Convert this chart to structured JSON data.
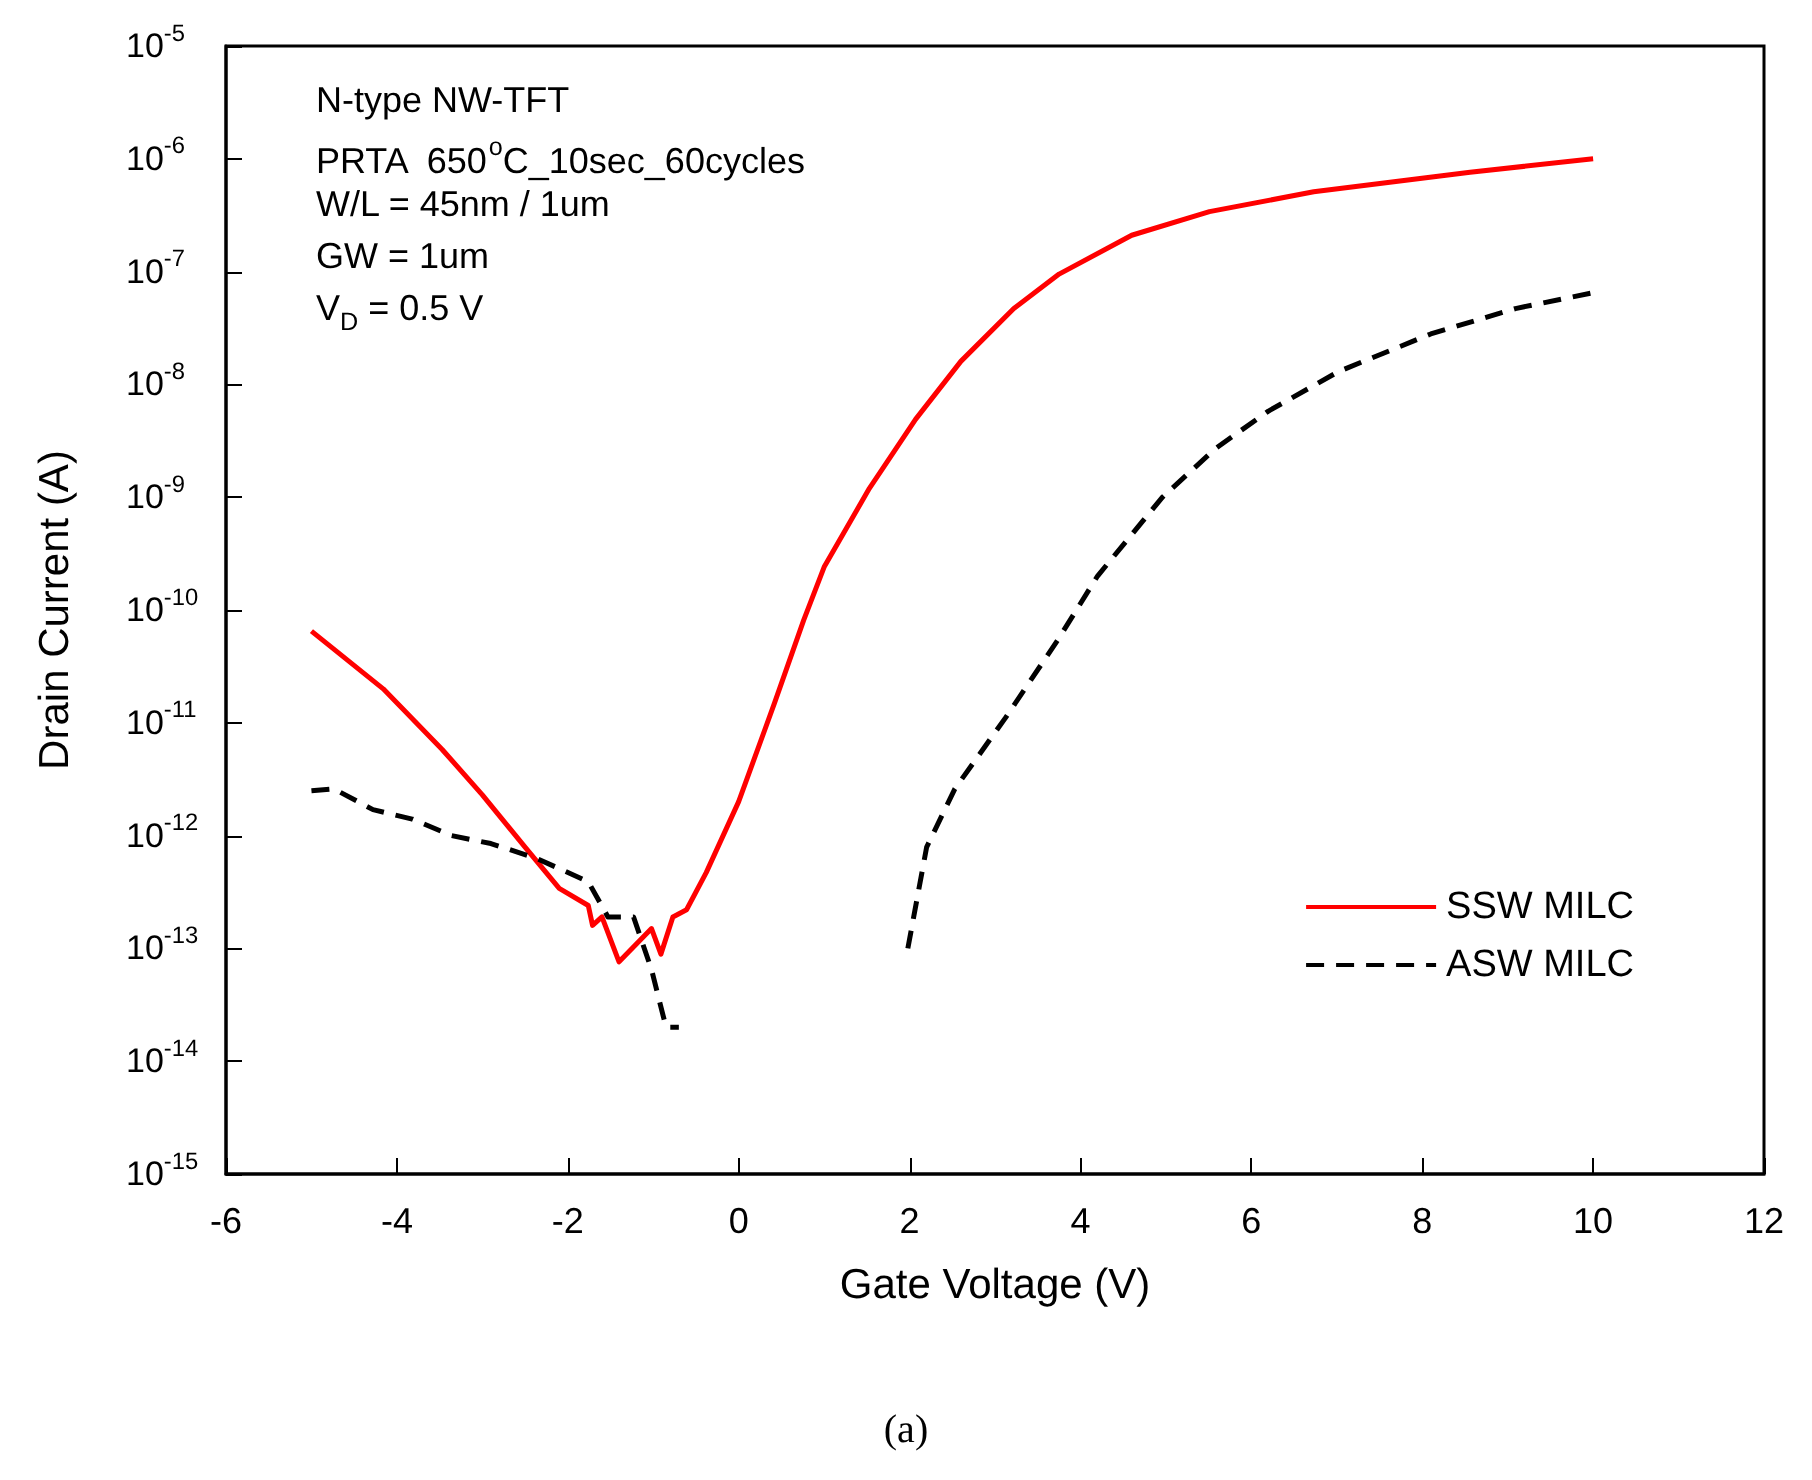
{
  "chart_data": {
    "type": "line",
    "xlabel": "Gate Voltage (V)",
    "ylabel": "Drain Current (A)",
    "log": "y",
    "grid": false,
    "legend": "bottom right",
    "marker": "none",
    "xlim": [
      -6,
      12
    ],
    "xticks": [
      -6,
      -4,
      -2,
      0,
      2,
      4,
      6,
      8,
      10,
      12
    ],
    "ylim": [
      1e-15,
      1e-05
    ],
    "yticks": [
      {
        "value": 1e-15,
        "label": "10$^{-15}$"
      },
      {
        "value": 1e-14,
        "label": "10$^{-14}$"
      },
      {
        "value": 1e-13,
        "label": "10$^{-13}$"
      },
      {
        "value": 1e-12,
        "label": "10$^{-12}$"
      },
      {
        "value": 1e-11,
        "label": "10$^{-11}$"
      },
      {
        "value": 1e-10,
        "label": "10$^{-10}$"
      },
      {
        "value": 1e-09,
        "label": "10$^{-9}$"
      },
      {
        "value": 1e-08,
        "label": "10$^{-8}$"
      },
      {
        "value": 1e-07,
        "label": "10$^{-7}$"
      },
      {
        "value": 1e-06,
        "label": "10$^{-6}$"
      },
      {
        "value": 1e-05,
        "label": "10$^{-5}$"
      }
    ],
    "annotations": [
      "N-type NW-TFT",
      "PRTA  650$^{o}$C_10sec_60cycles",
      "W/L = 45nm / 1um",
      "GW = 1um",
      "V$_{D}$ = 0.5 V",
      "(a)"
    ],
    "series": [
      {
        "name": "SSW MILC",
        "color": "#ff0000",
        "line_style": "solid",
        "x": [
          -5,
          -4.16,
          -3.47,
          -3.0,
          -2.5,
          -2.1,
          -1.76,
          -1.71,
          -1.6,
          -1.4,
          -1.02,
          -0.91,
          -0.77,
          -0.61,
          -0.38,
          0,
          0.42,
          0.76,
          1.0,
          1.53,
          2.07,
          2.6,
          3.22,
          3.75,
          4.6,
          5.51,
          6.73,
          8.56,
          10
        ],
        "values": [
          6.5e-11,
          2e-11,
          5.8e-12,
          2.3e-12,
          7.9e-13,
          3.4e-13,
          2.4e-13,
          1.6e-13,
          1.9e-13,
          7.6e-14,
          1.5e-13,
          8.9e-14,
          1.9e-13,
          2.2e-13,
          4.7e-13,
          2e-12,
          1.5e-11,
          8.1e-11,
          2.4e-10,
          1.2e-09,
          4.9e-09,
          1.6e-08,
          4.7e-08,
          9.5e-08,
          2.1e-07,
          3.4e-07,
          5.1e-07,
          7.6e-07,
          1e-06
        ]
      },
      {
        "name": "ASW MILC",
        "color": "#000000",
        "line_style": "dashed",
        "x": [
          -5,
          -4.74,
          -4.28,
          -3.82,
          -3.36,
          -2.9,
          -2.37,
          -1.76,
          -1.53,
          -1.23,
          -1.02,
          -0.85,
          -0.7,
          0.5,
          1.98,
          2.2,
          2.53,
          3.12,
          3.74,
          4.2,
          4.96,
          5.58,
          6.2,
          7.02,
          8.1,
          9.09,
          10
        ],
        "values": [
          2.5e-12,
          2.6e-12,
          1.7e-12,
          1.4e-12,
          1e-12,
          8.5e-13,
          6.3e-13,
          3.9e-13,
          1.9e-13,
          1.9e-13,
          6.5e-14,
          2e-14,
          2e-14,
          null,
          1e-13,
          7.9e-13,
          2.6e-12,
          1.1e-11,
          5.5e-11,
          2e-10,
          1e-09,
          2.7e-09,
          5.8e-09,
          1.3e-08,
          2.8e-08,
          4.7e-08,
          6.5e-08
        ]
      }
    ]
  }
}
